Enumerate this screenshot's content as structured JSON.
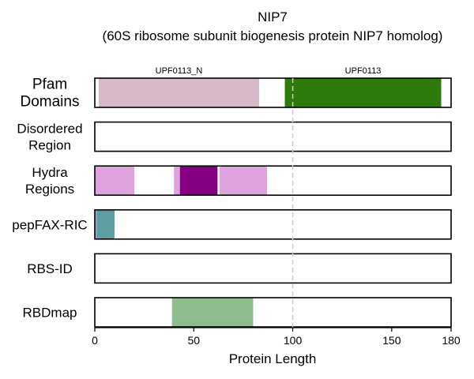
{
  "chart_data": {
    "type": "bar",
    "subtype": "protein-track-plot",
    "title": "NIP7",
    "subtitle": "(60S ribosome subunit biogenesis protein NIP7 homolog)",
    "xlabel": "Protein Length",
    "xlim": [
      0,
      180
    ],
    "xticks": [
      0,
      50,
      100,
      150,
      180
    ],
    "vertical_reference_line": 100,
    "grid": false,
    "tracks": [
      {
        "label": "Pfam Domains",
        "segments": [
          {
            "name": "UPF0113_N",
            "start": 2,
            "end": 83,
            "color": "#d8b9c9"
          },
          {
            "name": "UPF0113",
            "start": 96,
            "end": 175,
            "color": "#2e7b0c"
          }
        ]
      },
      {
        "label": "Disordered Region",
        "segments": []
      },
      {
        "label": "Hydra Regions",
        "segments": [
          {
            "start": 0,
            "end": 20,
            "color": "#dea2dc"
          },
          {
            "start": 40,
            "end": 43,
            "color": "#dea2dc"
          },
          {
            "start": 43,
            "end": 62,
            "color": "#850080"
          },
          {
            "start": 63,
            "end": 87,
            "color": "#dea2dc"
          }
        ]
      },
      {
        "label": "pepFAX-RIC",
        "segments": [
          {
            "start": 0,
            "end": 1,
            "color": "#9aa6d8"
          },
          {
            "start": 1,
            "end": 10,
            "color": "#5f9ea0"
          }
        ]
      },
      {
        "label": "RBS-ID",
        "segments": []
      },
      {
        "label": "RBDmap",
        "segments": [
          {
            "start": 39,
            "end": 80,
            "color": "#8fbc8f"
          }
        ]
      }
    ]
  }
}
